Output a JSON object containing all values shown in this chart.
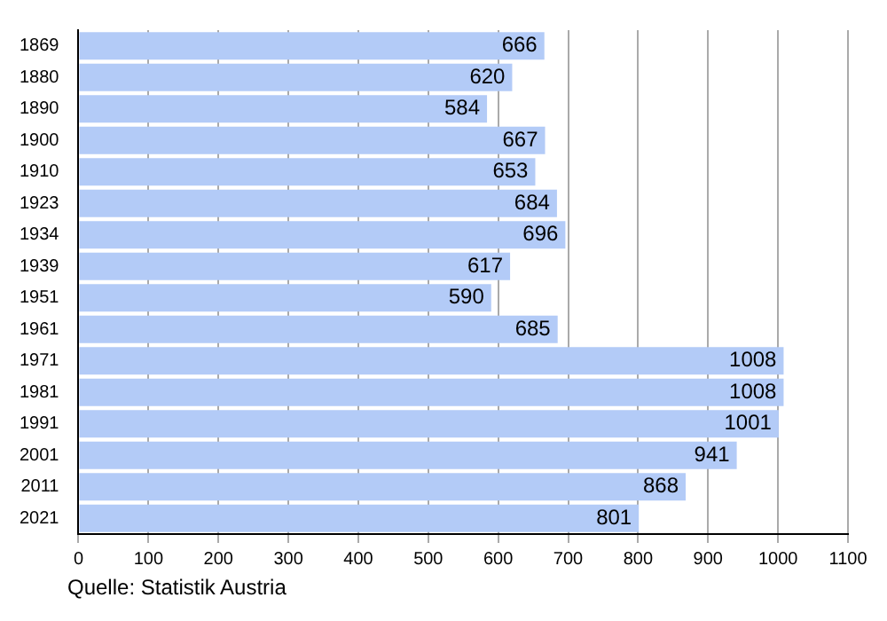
{
  "chart_data": {
    "type": "bar",
    "orientation": "horizontal",
    "categories": [
      "1869",
      "1880",
      "1890",
      "1900",
      "1910",
      "1923",
      "1934",
      "1939",
      "1951",
      "1961",
      "1971",
      "1981",
      "1991",
      "2001",
      "2011",
      "2021"
    ],
    "values": [
      666,
      620,
      584,
      667,
      653,
      684,
      696,
      617,
      590,
      685,
      1008,
      1008,
      1001,
      941,
      868,
      801
    ],
    "color": "#b3cbf7",
    "data_labels": true,
    "grid": "x",
    "xlim": [
      0,
      1100
    ],
    "xticks": [
      0,
      100,
      200,
      300,
      400,
      500,
      600,
      700,
      800,
      900,
      1000,
      1100
    ],
    "annotations": [
      "Quelle: Statistik Austria"
    ]
  }
}
